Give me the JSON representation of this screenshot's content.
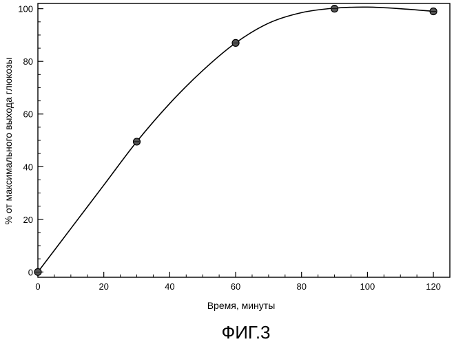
{
  "chart_data": {
    "type": "line",
    "xlabel": "Время, минуты",
    "ylabel": "% от максимального выхода глюкозы",
    "caption": "ФИГ.3",
    "xlim": [
      0,
      125
    ],
    "ylim": [
      -2,
      102
    ],
    "x_ticks": [
      0,
      20,
      40,
      60,
      80,
      100,
      120
    ],
    "y_ticks": [
      0,
      20,
      40,
      60,
      80,
      100
    ],
    "grid": false,
    "line_color": "#000000",
    "series": [
      {
        "x": [
          0,
          30,
          60,
          90,
          120
        ],
        "y": [
          0,
          49.5,
          87,
          100,
          99
        ],
        "marker": "circle"
      }
    ],
    "smooth_curve": {
      "x": [
        0,
        10,
        20,
        30,
        40,
        50,
        60,
        70,
        80,
        90,
        100,
        110,
        120
      ],
      "y": [
        0,
        16.5,
        33,
        49.5,
        64,
        76.5,
        87,
        94.5,
        98.5,
        100.2,
        100.6,
        100,
        99
      ]
    }
  }
}
